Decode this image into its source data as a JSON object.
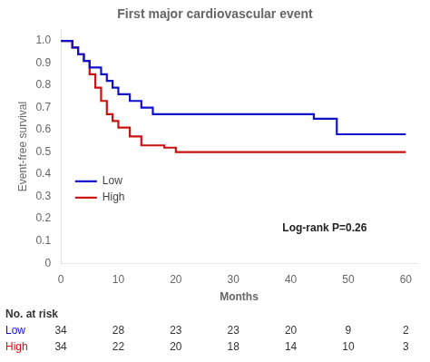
{
  "chart_data": {
    "type": "step",
    "title": "First major cardiovascular event",
    "ylabel": "Event-free survival",
    "xlabel": "Months",
    "xlim": [
      0,
      62
    ],
    "ylim": [
      0,
      1.05
    ],
    "xticks": [
      0,
      10,
      20,
      30,
      40,
      50,
      60
    ],
    "yticks": [
      0,
      0.1,
      0.2,
      0.3,
      0.4,
      0.5,
      0.6,
      0.7,
      0.8,
      0.9,
      {
        "value": 1.0,
        "label": "1.0"
      }
    ],
    "grid": false,
    "legend": "lower left",
    "series": [
      {
        "name": "Low",
        "color": "#1111CC",
        "x": [
          0,
          2,
          3,
          4,
          5,
          7,
          8,
          9,
          10,
          12,
          14,
          16,
          44,
          48,
          60
        ],
        "values": [
          1.0,
          0.97,
          0.94,
          0.91,
          0.88,
          0.85,
          0.82,
          0.79,
          0.76,
          0.73,
          0.7,
          0.67,
          0.65,
          0.58,
          0.58
        ]
      },
      {
        "name": "High",
        "color": "#CC1111",
        "x": [
          0,
          2,
          3,
          4,
          5,
          6,
          7,
          8,
          9,
          10,
          12,
          14,
          16,
          18,
          20,
          28,
          60
        ],
        "values": [
          1.0,
          0.97,
          0.94,
          0.91,
          0.85,
          0.79,
          0.73,
          0.67,
          0.64,
          0.61,
          0.57,
          0.53,
          0.53,
          0.52,
          0.5,
          0.5,
          0.5
        ]
      }
    ],
    "annotations": [
      {
        "text": "Log-rank P=0.26"
      }
    ],
    "at_risk": {
      "title": "No. at risk",
      "x": [
        0,
        10,
        20,
        30,
        40,
        50,
        60
      ],
      "rows": [
        {
          "name": "Low",
          "values": [
            34,
            28,
            23,
            23,
            20,
            9,
            2
          ]
        },
        {
          "name": "High",
          "values": [
            34,
            22,
            20,
            18,
            14,
            10,
            3
          ]
        }
      ]
    }
  }
}
